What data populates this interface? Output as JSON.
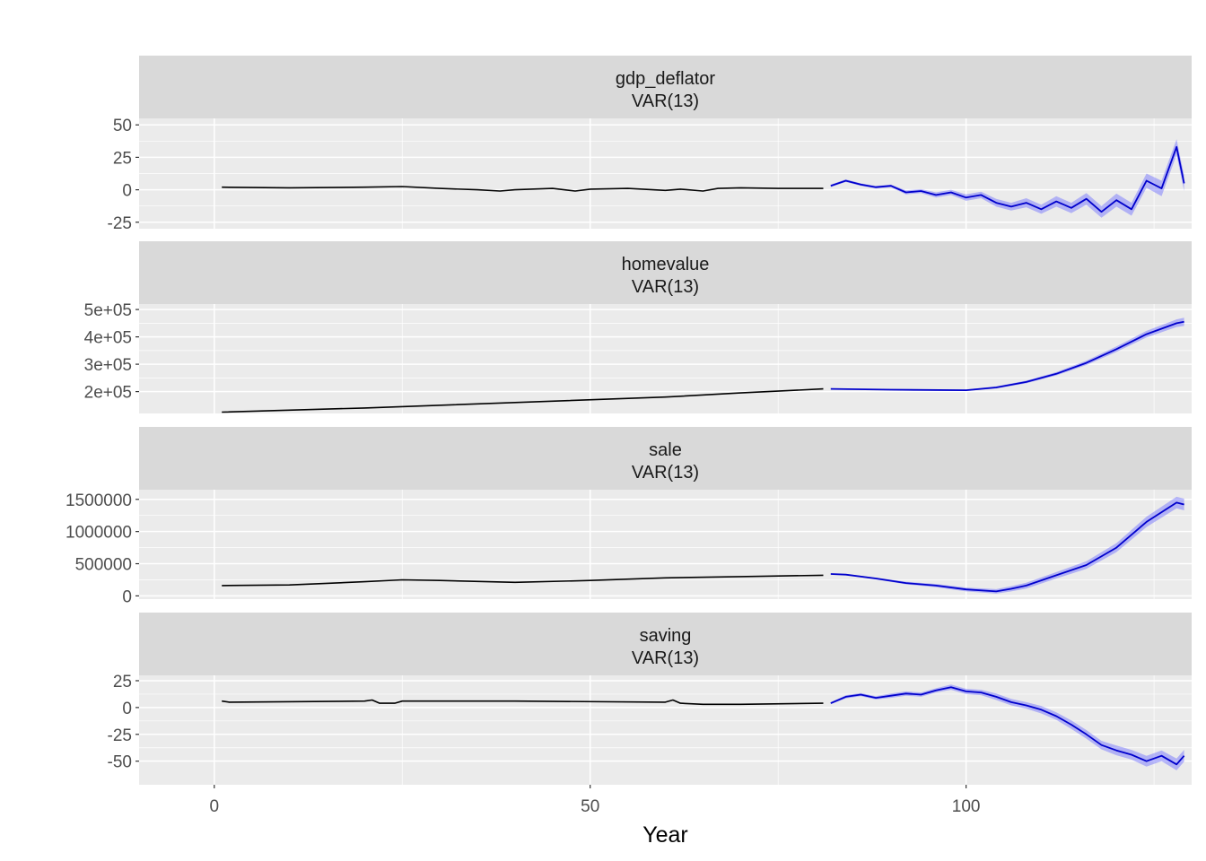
{
  "chart_data": {
    "type": "line",
    "xlabel": "Year",
    "xlim": [
      -10,
      130
    ],
    "x_breaks": [
      0,
      50,
      100
    ],
    "x_tick_labels": [
      "0",
      "50",
      "100"
    ],
    "history_range": [
      1,
      81
    ],
    "forecast_range": [
      82,
      129
    ],
    "colors": {
      "panel_bg": "#ebebeb",
      "strip_bg": "#d9d9d9",
      "grid": "#ffffff",
      "history_line": "#000000",
      "forecast_line": "#0000cc",
      "interval_fill": "#6b6bff"
    },
    "panels": [
      {
        "strip_title": "gdp_deflator",
        "strip_subtitle": "VAR(13)",
        "ylim": [
          -30,
          55
        ],
        "y_breaks": [
          -25,
          0,
          25,
          50
        ],
        "y_tick_labels": [
          "-25",
          "0",
          "25",
          "50"
        ],
        "history": {
          "x": [
            1,
            10,
            20,
            25,
            30,
            35,
            38,
            40,
            45,
            48,
            50,
            55,
            60,
            62,
            65,
            67,
            70,
            75,
            81
          ],
          "y": [
            2,
            1.5,
            2,
            2.5,
            1,
            0,
            -1,
            0,
            1,
            -1,
            0.5,
            1,
            -0.5,
            0.5,
            -1,
            1,
            1.5,
            1,
            1
          ]
        },
        "forecast": {
          "x": [
            82,
            84,
            86,
            88,
            90,
            92,
            94,
            96,
            98,
            100,
            102,
            104,
            106,
            108,
            110,
            112,
            114,
            116,
            118,
            120,
            122,
            124,
            126,
            128,
            129
          ],
          "y": [
            3,
            7,
            4,
            2,
            3,
            -2,
            -1,
            -4,
            -2,
            -6,
            -4,
            -10,
            -13,
            -10,
            -15,
            -9,
            -14,
            -7,
            -17,
            -8,
            -15,
            7,
            1,
            33,
            5
          ]
        },
        "band_halfwidth": [
          1,
          1,
          1,
          1,
          1,
          1.5,
          1.5,
          2,
          2,
          2.5,
          2.5,
          3,
          3,
          3.5,
          3.5,
          4,
          4,
          4.5,
          4.5,
          5,
          5,
          5.5,
          6,
          6,
          6
        ]
      },
      {
        "strip_title": "homevalue",
        "strip_subtitle": "VAR(13)",
        "ylim": [
          120000,
          520000
        ],
        "y_breaks": [
          200000,
          300000,
          400000,
          500000
        ],
        "y_tick_labels": [
          "2e+05",
          "3e+05",
          "4e+05",
          "5e+05"
        ],
        "history": {
          "x": [
            1,
            20,
            40,
            60,
            70,
            81
          ],
          "y": [
            125000,
            140000,
            160000,
            180000,
            195000,
            210000
          ]
        },
        "forecast": {
          "x": [
            82,
            90,
            100,
            104,
            108,
            112,
            116,
            120,
            124,
            128,
            129
          ],
          "y": [
            210000,
            207000,
            205000,
            215000,
            235000,
            265000,
            305000,
            355000,
            410000,
            450000,
            455000
          ]
        },
        "band_halfwidth": [
          1000,
          2000,
          3000,
          4000,
          5000,
          6000,
          8000,
          10000,
          12000,
          14000,
          15000
        ]
      },
      {
        "strip_title": "sale",
        "strip_subtitle": "VAR(13)",
        "ylim": [
          -50000,
          1650000
        ],
        "y_breaks": [
          0,
          500000,
          1000000,
          1500000
        ],
        "y_tick_labels": [
          "0",
          "500000",
          "1000000",
          "1500000"
        ],
        "history": {
          "x": [
            1,
            10,
            20,
            25,
            30,
            40,
            50,
            60,
            70,
            81
          ],
          "y": [
            160000,
            170000,
            220000,
            250000,
            240000,
            210000,
            240000,
            280000,
            300000,
            320000
          ]
        },
        "forecast": {
          "x": [
            82,
            84,
            88,
            92,
            96,
            100,
            104,
            106,
            108,
            112,
            116,
            120,
            124,
            128,
            129
          ],
          "y": [
            340000,
            330000,
            270000,
            200000,
            160000,
            100000,
            70000,
            110000,
            160000,
            320000,
            480000,
            750000,
            1150000,
            1450000,
            1420000
          ]
        },
        "band_halfwidth": [
          5000,
          10000,
          15000,
          20000,
          25000,
          30000,
          35000,
          40000,
          45000,
          50000,
          60000,
          70000,
          80000,
          90000,
          90000
        ]
      },
      {
        "strip_title": "saving",
        "strip_subtitle": "VAR(13)",
        "ylim": [
          -72,
          30
        ],
        "y_breaks": [
          -50,
          -25,
          0,
          25
        ],
        "y_tick_labels": [
          "-50",
          "-25",
          "0",
          "25"
        ],
        "history": {
          "x": [
            1,
            2,
            20,
            21,
            22,
            24,
            25,
            30,
            40,
            60,
            61,
            62,
            65,
            70,
            81
          ],
          "y": [
            6,
            5,
            6,
            7,
            4,
            4,
            6,
            6,
            6,
            5,
            7,
            4,
            3,
            3,
            4
          ]
        },
        "forecast": {
          "x": [
            82,
            84,
            86,
            88,
            90,
            92,
            94,
            96,
            98,
            100,
            102,
            104,
            106,
            108,
            110,
            112,
            114,
            116,
            118,
            120,
            122,
            124,
            126,
            128,
            129
          ],
          "y": [
            4,
            10,
            12,
            9,
            11,
            13,
            12,
            16,
            19,
            15,
            14,
            10,
            5,
            2,
            -2,
            -8,
            -16,
            -25,
            -35,
            -40,
            -44,
            -50,
            -45,
            -53,
            -45
          ]
        },
        "band_halfwidth": [
          1,
          1.5,
          1.5,
          1.5,
          2,
          2,
          2,
          2,
          2.5,
          2.5,
          2.5,
          3,
          3,
          3,
          3.5,
          3.5,
          4,
          4,
          4,
          4.5,
          4.5,
          5,
          5,
          5.5,
          5.5
        ]
      }
    ]
  }
}
